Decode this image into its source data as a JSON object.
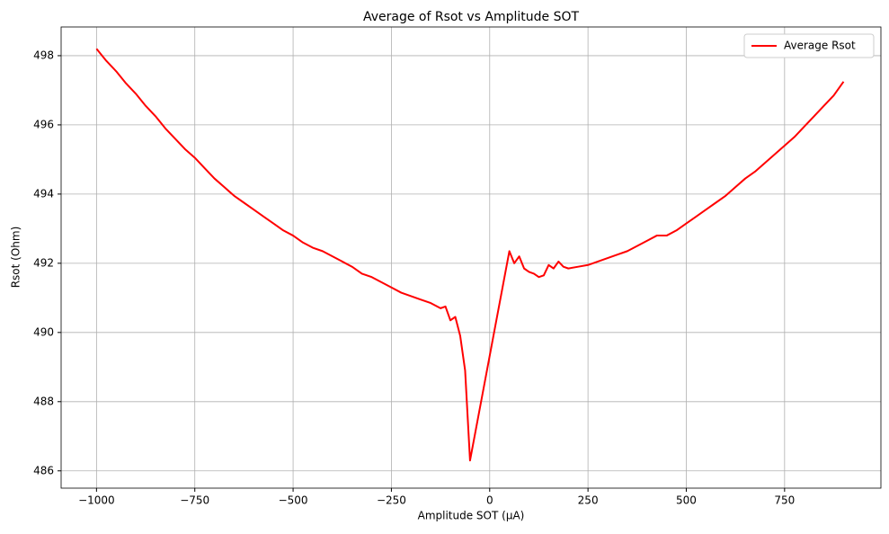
{
  "chart_data": {
    "type": "line",
    "title": "Average of Rsot vs Amplitude SOT",
    "x_label": "Amplitude SOT (μA)",
    "y_label": "Rsot (Ohm)",
    "x": [
      -1000,
      -975,
      -950,
      -925,
      -900,
      -875,
      -850,
      -825,
      -800,
      -775,
      -750,
      -725,
      -700,
      -675,
      -650,
      -625,
      -600,
      -575,
      -550,
      -525,
      -500,
      -475,
      -450,
      -425,
      -400,
      -375,
      -350,
      -325,
      -300,
      -275,
      -250,
      -225,
      -200,
      -175,
      -150,
      -125,
      -112.5,
      -100,
      -87.5,
      -75,
      -62.5,
      -50,
      50,
      62.5,
      75,
      87.5,
      100,
      112.5,
      125,
      137.5,
      150,
      162.5,
      175,
      187.5,
      200,
      225,
      250,
      275,
      300,
      325,
      350,
      375,
      400,
      425,
      450,
      475,
      500,
      525,
      550,
      575,
      600,
      625,
      650,
      675,
      700,
      725,
      750,
      775,
      800,
      825,
      850,
      875,
      900
    ],
    "series": [
      {
        "name": "Average Rsot",
        "color": "#ff0000",
        "values": [
          498.2,
          497.85,
          497.55,
          497.2,
          496.9,
          496.55,
          496.25,
          495.9,
          495.6,
          495.3,
          495.05,
          494.75,
          494.45,
          494.2,
          493.95,
          493.75,
          493.55,
          493.35,
          493.15,
          492.95,
          492.8,
          492.6,
          492.45,
          492.35,
          492.2,
          492.05,
          491.9,
          491.7,
          491.6,
          491.45,
          491.3,
          491.15,
          491.05,
          490.95,
          490.85,
          490.7,
          490.75,
          490.35,
          490.45,
          489.9,
          488.9,
          486.3,
          492.35,
          492.0,
          492.2,
          491.85,
          491.75,
          491.7,
          491.6,
          491.65,
          491.95,
          491.85,
          492.05,
          491.9,
          491.85,
          491.9,
          491.95,
          492.05,
          492.15,
          492.25,
          492.35,
          492.5,
          492.65,
          492.8,
          492.8,
          492.95,
          493.15,
          493.35,
          493.55,
          493.75,
          493.95,
          494.2,
          494.45,
          494.65,
          494.9,
          495.15,
          495.4,
          495.65,
          495.95,
          496.25,
          496.55,
          496.85,
          497.25
        ]
      }
    ],
    "xlim": [
      -1090,
      995
    ],
    "ylim": [
      485.5,
      498.83
    ],
    "xticks": [
      {
        "value": -1000,
        "label": "−1000"
      },
      {
        "value": -750,
        "label": "−750"
      },
      {
        "value": -500,
        "label": "−500"
      },
      {
        "value": -250,
        "label": "−250"
      },
      0,
      250,
      500,
      750
    ],
    "yticks": [
      486,
      488,
      490,
      492,
      494,
      496,
      498
    ],
    "grid": true,
    "legend": "upper right"
  }
}
